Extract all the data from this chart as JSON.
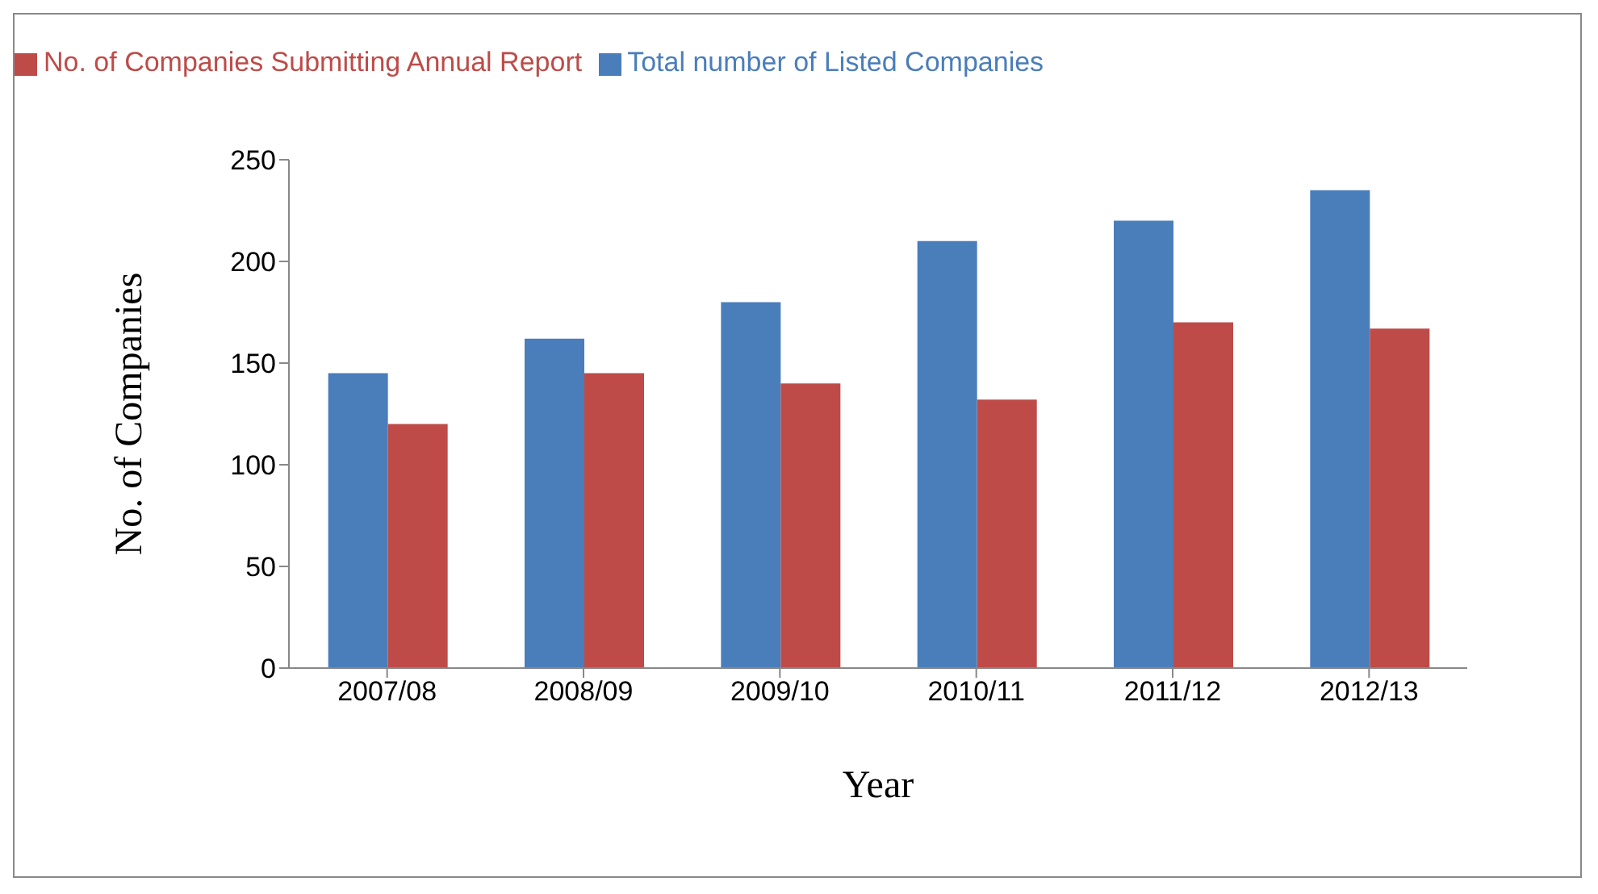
{
  "chart_data": {
    "type": "bar",
    "ylabel": "No. of Companies",
    "xlabel": "Year",
    "categories": [
      "2007/08",
      "2008/09",
      "2009/10",
      "2010/11",
      "2011/12",
      "2012/13"
    ],
    "series": [
      {
        "name": "Total number of Listed Companies",
        "color": "#4a7ebb",
        "values": [
          145,
          162,
          180,
          210,
          220,
          235
        ]
      },
      {
        "name": "No. of Companies Submitting Annual Report",
        "color": "#be4b48",
        "values": [
          120,
          145,
          140,
          132,
          170,
          167
        ]
      }
    ],
    "ylim": [
      0,
      250
    ],
    "yticks": [
      0,
      50,
      100,
      150,
      200,
      250
    ],
    "grid": false,
    "legend": "top left"
  }
}
